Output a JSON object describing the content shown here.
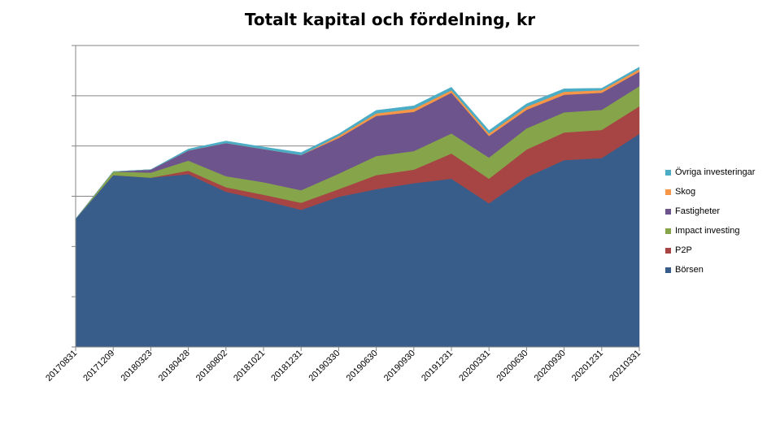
{
  "chart_data": {
    "type": "area",
    "stacked": true,
    "title": "Totalt kapital och fördelning, kr",
    "xlabel": "",
    "ylabel": "",
    "ylim": [
      0,
      6
    ],
    "grid": "horizontal",
    "legend_position": "right",
    "categories": [
      "20170831",
      "20171209",
      "20180323",
      "20180428",
      "20180802",
      "20181021",
      "20181231",
      "20190330",
      "20190630",
      "20190930",
      "20191231",
      "20200331",
      "20200630",
      "20200930",
      "20201231",
      "20210331"
    ],
    "series": [
      {
        "name": "Börsen",
        "color": "#385D8A",
        "values": [
          2.55,
          3.42,
          3.37,
          3.44,
          3.09,
          2.92,
          2.73,
          2.99,
          3.14,
          3.26,
          3.35,
          2.86,
          3.38,
          3.72,
          3.76,
          4.24
        ]
      },
      {
        "name": "P2P",
        "color": "#A64543",
        "values": [
          0,
          0,
          0,
          0.07,
          0.09,
          0.11,
          0.14,
          0.15,
          0.28,
          0.27,
          0.5,
          0.49,
          0.55,
          0.55,
          0.56,
          0.55
        ]
      },
      {
        "name": "Impact investing",
        "color": "#86A44A",
        "values": [
          0,
          0.07,
          0.1,
          0.2,
          0.22,
          0.25,
          0.25,
          0.31,
          0.38,
          0.37,
          0.4,
          0.42,
          0.42,
          0.4,
          0.4,
          0.4
        ]
      },
      {
        "name": "Fastigheter",
        "color": "#6E548D",
        "values": [
          0,
          0,
          0.06,
          0.2,
          0.66,
          0.66,
          0.7,
          0.71,
          0.8,
          0.78,
          0.81,
          0.43,
          0.37,
          0.35,
          0.34,
          0.29
        ]
      },
      {
        "name": "Skog",
        "color": "#F79646",
        "values": [
          0,
          0,
          0,
          0,
          0,
          0,
          0,
          0.04,
          0.05,
          0.06,
          0.05,
          0.05,
          0.06,
          0.06,
          0.05,
          0.05
        ]
      },
      {
        "name": "Övriga investeringar",
        "color": "#4BACC6",
        "values": [
          0,
          0,
          0,
          0.03,
          0.04,
          0.04,
          0.05,
          0.04,
          0.06,
          0.06,
          0.06,
          0.06,
          0.06,
          0.06,
          0.04,
          0.04
        ]
      }
    ]
  }
}
